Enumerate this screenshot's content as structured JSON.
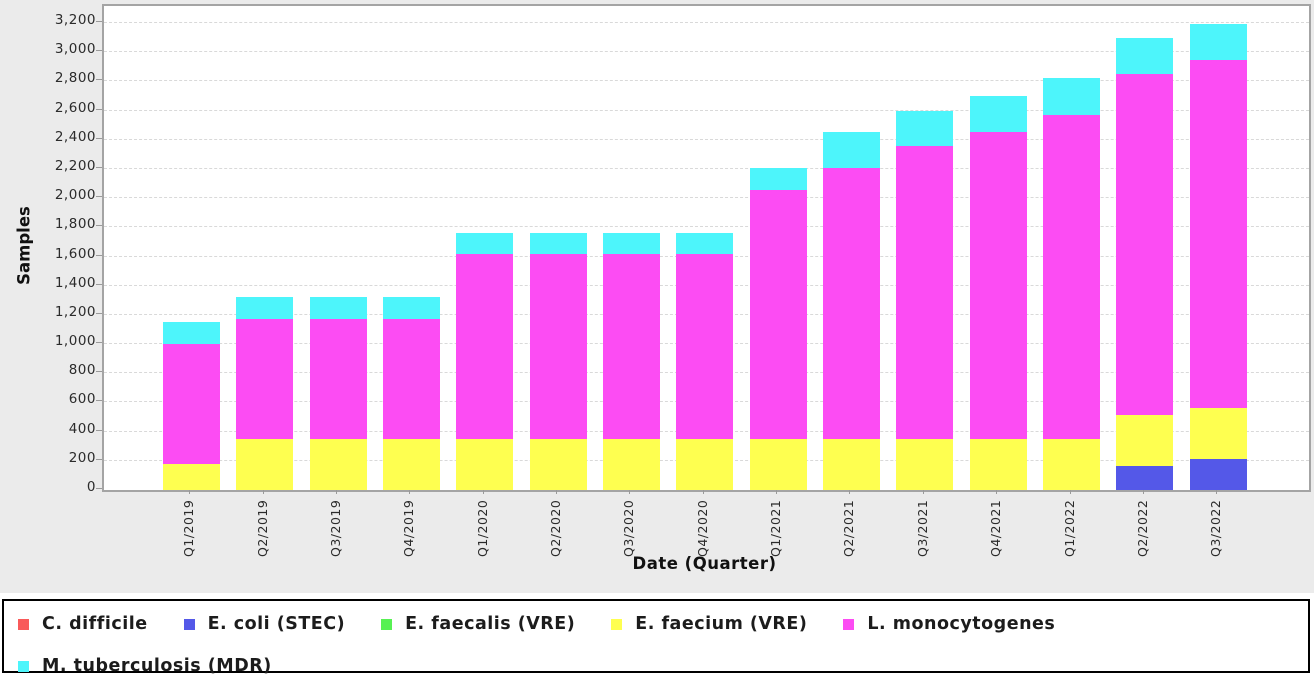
{
  "chart_data": {
    "type": "bar",
    "stacked": true,
    "title": "",
    "categories": [
      "Q1/2019",
      "Q2/2019",
      "Q3/2019",
      "Q4/2019",
      "Q1/2020",
      "Q2/2020",
      "Q3/2020",
      "Q4/2020",
      "Q1/2021",
      "Q2/2021",
      "Q3/2021",
      "Q4/2021",
      "Q1/2022",
      "Q2/2022",
      "Q3/2022"
    ],
    "series": [
      {
        "name": "C. difficile",
        "color": "#f95a5a",
        "values": [
          0,
          0,
          0,
          0,
          0,
          0,
          0,
          0,
          0,
          0,
          0,
          0,
          0,
          0,
          0
        ]
      },
      {
        "name": "E. coli (STEC)",
        "color": "#5458e8",
        "values": [
          0,
          0,
          0,
          0,
          0,
          0,
          0,
          0,
          0,
          0,
          0,
          0,
          0,
          165,
          215
        ]
      },
      {
        "name": "E. faecalis (VRE)",
        "color": "#57f153",
        "values": [
          0,
          0,
          0,
          0,
          0,
          0,
          0,
          0,
          0,
          0,
          0,
          0,
          0,
          0,
          0
        ]
      },
      {
        "name": "E. faecium (VRE)",
        "color": "#feff50",
        "values": [
          175,
          350,
          350,
          350,
          350,
          350,
          350,
          350,
          350,
          350,
          350,
          350,
          350,
          350,
          350
        ]
      },
      {
        "name": "L. monocytogenes",
        "color": "#fc4cf3",
        "values": [
          825,
          825,
          825,
          825,
          1265,
          1265,
          1265,
          1265,
          1705,
          1855,
          2005,
          2105,
          2220,
          2335,
          2380
        ]
      },
      {
        "name": "M. tuberculosis (MDR)",
        "color": "#4df5fb",
        "values": [
          150,
          145,
          145,
          145,
          145,
          145,
          145,
          145,
          150,
          245,
          245,
          245,
          250,
          250,
          250
        ]
      }
    ],
    "xlabel": "Date (Quarter)",
    "ylabel": "Samples",
    "ylim": [
      0,
      3200
    ],
    "y_tick_step": 200,
    "y_tick_labels": [
      "0",
      "200",
      "400",
      "600",
      "800",
      "1,000",
      "1,200",
      "1,400",
      "1,600",
      "1,800",
      "2,000",
      "2,200",
      "2,400",
      "2,600",
      "2,800",
      "3,000",
      "3,200"
    ],
    "grid": true,
    "legend_position": "bottom"
  },
  "colors": {
    "panel_background": "#ebebeb",
    "plot_background": "#ffffff",
    "plot_border": "#a4a4a4",
    "gridline": "#d9d9d9",
    "legend_border": "#000000",
    "tick_text": "#2b2b2b"
  }
}
